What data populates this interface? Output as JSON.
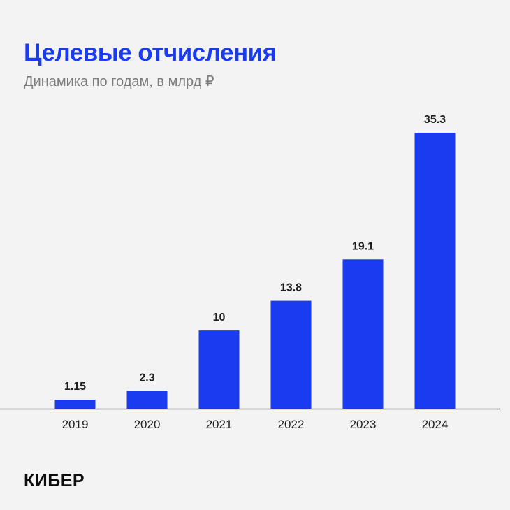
{
  "header": {
    "title": "Целевые отчисления",
    "subtitle": "Динамика по годам, в млрд ₽"
  },
  "brand": {
    "logo_text": "КИБЕР"
  },
  "colors": {
    "accent": "#1a3cf0",
    "bar": "#1a3cf0",
    "axis": "#1e1e1e",
    "label": "#1e1e1e",
    "background": "#f3f3f3"
  },
  "chart_data": {
    "type": "bar",
    "title": "Целевые отчисления",
    "subtitle": "Динамика по годам, в млрд ₽",
    "xlabel": "",
    "ylabel": "",
    "categories": [
      "2019",
      "2020",
      "2021",
      "2022",
      "2023",
      "2024"
    ],
    "values": [
      1.15,
      2.3,
      10,
      13.8,
      19.1,
      35.3
    ],
    "value_labels": [
      "1.15",
      "2.3",
      "10",
      "13.8",
      "19.1",
      "35.3"
    ],
    "ylim": [
      0,
      35.3
    ],
    "grid": false,
    "legend": "none"
  }
}
